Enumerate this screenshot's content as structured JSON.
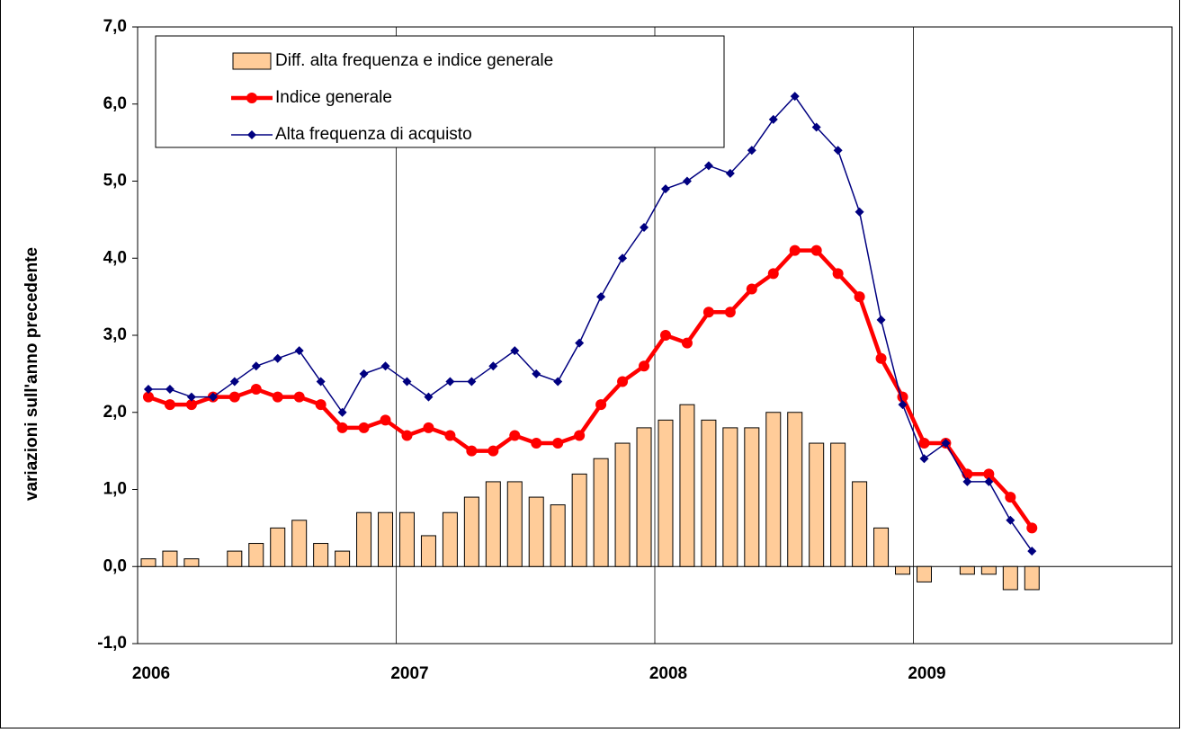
{
  "chart_data": {
    "type": "bar_line",
    "ylabel": "variazioni sull'anno precedente",
    "categories": [
      "2006",
      null,
      null,
      null,
      null,
      null,
      null,
      null,
      null,
      null,
      null,
      null,
      "2007",
      null,
      null,
      null,
      null,
      null,
      null,
      null,
      null,
      null,
      null,
      null,
      "2008",
      null,
      null,
      null,
      null,
      null,
      null,
      null,
      null,
      null,
      null,
      null,
      "2009",
      null,
      null,
      null,
      null,
      null
    ],
    "series": [
      {
        "name": "Diff. alta frequenza e indice generale",
        "type": "bar",
        "color": "#ffcc99",
        "values": [
          0.1,
          0.2,
          0.1,
          0,
          0.2,
          0.3,
          0.5,
          0.6,
          0.3,
          0.2,
          0.7,
          0.7,
          0.7,
          0.4,
          0.7,
          0.9,
          1.1,
          1.1,
          0.9,
          0.8,
          1.2,
          1.4,
          1.6,
          1.8,
          1.9,
          2.1,
          1.9,
          1.8,
          1.8,
          2.0,
          2.0,
          1.6,
          1.6,
          1.1,
          0.5,
          -0.1,
          -0.2,
          0,
          -0.1,
          -0.1,
          -0.3,
          -0.3
        ]
      },
      {
        "name": "Indice generale",
        "type": "line",
        "color": "#ff0000",
        "marker": "circle",
        "values": [
          2.2,
          2.1,
          2.1,
          2.2,
          2.2,
          2.3,
          2.2,
          2.2,
          2.1,
          1.8,
          1.8,
          1.9,
          1.7,
          1.8,
          1.7,
          1.5,
          1.5,
          1.7,
          1.6,
          1.6,
          1.7,
          2.1,
          2.4,
          2.6,
          3.0,
          2.9,
          3.3,
          3.3,
          3.6,
          3.8,
          4.1,
          4.1,
          3.8,
          3.5,
          2.7,
          2.2,
          1.6,
          1.6,
          1.2,
          1.2,
          0.9,
          0.5
        ]
      },
      {
        "name": "Alta frequenza di acquisto",
        "type": "line",
        "color": "#000080",
        "marker": "diamond",
        "values": [
          2.3,
          2.3,
          2.2,
          2.2,
          2.4,
          2.6,
          2.7,
          2.8,
          2.4,
          2.0,
          2.5,
          2.6,
          2.4,
          2.2,
          2.4,
          2.4,
          2.6,
          2.8,
          2.5,
          2.4,
          2.9,
          3.5,
          4.0,
          4.4,
          4.9,
          5.0,
          5.2,
          5.1,
          5.4,
          5.8,
          6.1,
          5.7,
          5.4,
          4.6,
          3.2,
          2.1,
          1.4,
          1.6,
          1.1,
          1.1,
          0.6,
          0.2
        ]
      }
    ],
    "ylim": [
      -1,
      7
    ],
    "yticks": [
      {
        "value": -1,
        "label": "-1,0"
      },
      {
        "value": 0,
        "label": "0,0"
      },
      {
        "value": 1,
        "label": "1,0"
      },
      {
        "value": 2,
        "label": "2,0"
      },
      {
        "value": 3,
        "label": "3,0"
      },
      {
        "value": 4,
        "label": "4,0"
      },
      {
        "value": 5,
        "label": "5,0"
      },
      {
        "value": 6,
        "label": "6,0"
      },
      {
        "value": 7,
        "label": "7,0"
      }
    ],
    "grid": true
  }
}
